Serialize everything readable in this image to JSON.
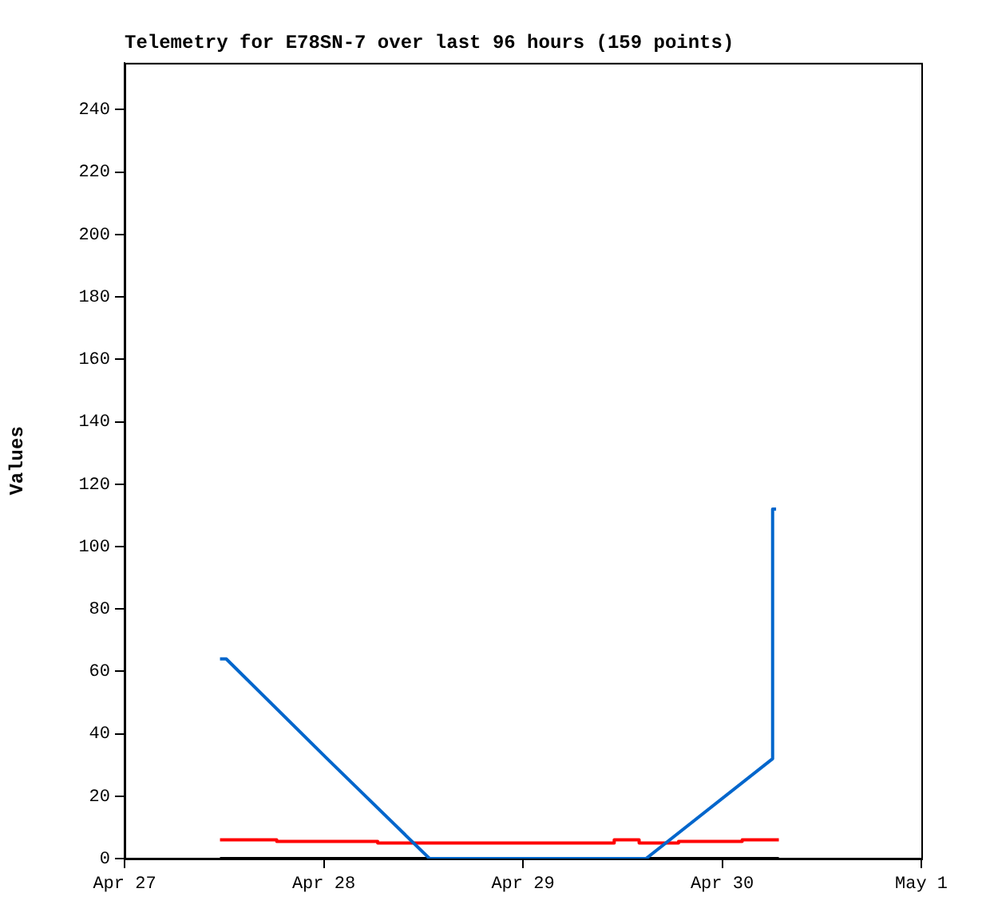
{
  "chart_data": {
    "type": "line",
    "title": "Telemetry for E78SN-7 over last 96 hours (159 points)",
    "ylabel": "Values",
    "xlim": [
      "--04-27",
      "--05-01"
    ],
    "xticks": [
      {
        "value": "--04-27",
        "label": "Apr 27"
      },
      {
        "value": "--04-28",
        "label": "Apr 28"
      },
      {
        "value": "--04-29",
        "label": "Apr 29"
      },
      {
        "value": "--04-30",
        "label": "Apr 30"
      },
      {
        "value": "--05-01",
        "label": "May 1"
      }
    ],
    "ylim": [
      0,
      255
    ],
    "yticks": [
      0,
      20,
      40,
      60,
      80,
      100,
      120,
      140,
      160,
      180,
      200,
      220,
      240
    ],
    "grid": false,
    "legend": false,
    "series": [
      {
        "type": "line",
        "color": "#000000",
        "x": [
          "--04-27T11:30",
          "--04-30T06:50"
        ],
        "values": [
          0,
          0
        ]
      },
      {
        "type": "step",
        "color": "#ff0000",
        "x": [
          "--04-27T11:30",
          "--04-27T18:20",
          "--04-28T06:30",
          "--04-29T11:00",
          "--04-29T14:00",
          "--04-29T18:45",
          "--04-30T02:25",
          "--04-30T06:50"
        ],
        "values": [
          6,
          5.5,
          5,
          6,
          5,
          5.5,
          6,
          6
        ]
      },
      {
        "type": "line",
        "color": "#0066cc",
        "x": [
          "--04-27T11:30",
          "--04-27T12:15",
          "--04-28T00:25",
          "--04-28T12:45",
          "--04-29T14:50",
          "--04-30T06:05",
          "--04-30T06:05",
          "--04-30T06:30"
        ],
        "values": [
          64,
          64,
          32,
          0,
          0,
          32,
          112,
          112
        ]
      }
    ]
  }
}
